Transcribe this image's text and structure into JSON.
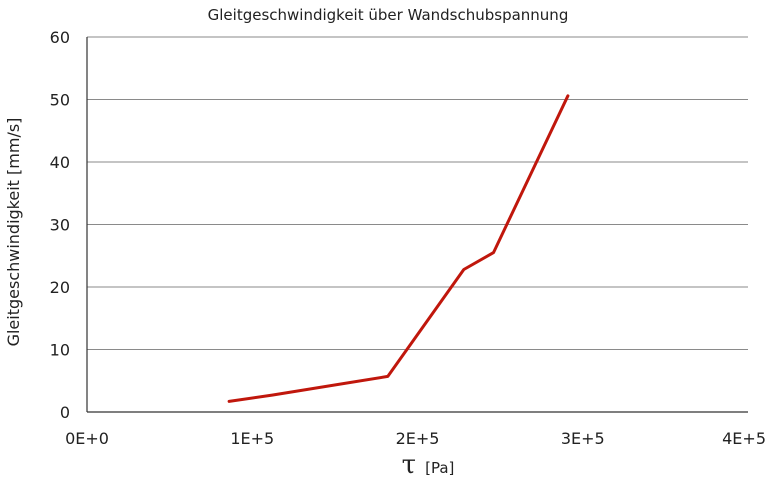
{
  "chart_data": {
    "type": "line",
    "title": "Gleitgeschwindigkeit über Wandschubspannung",
    "xlabel_symbol": "τ",
    "xlabel_unit": "[Pa]",
    "ylabel": "Gleitgeschwindigkeit [mm/s]",
    "xlim": [
      0,
      400000
    ],
    "ylim": [
      0,
      60
    ],
    "x_ticks": [
      0,
      100000,
      200000,
      300000,
      400000
    ],
    "x_tick_labels": [
      "0E+0",
      "1E+5",
      "2E+5",
      "3E+5",
      "4E+5"
    ],
    "y_ticks": [
      0,
      10,
      20,
      30,
      40,
      50,
      60
    ],
    "y_tick_labels": [
      "0",
      "10",
      "20",
      "30",
      "40",
      "50",
      "60"
    ],
    "grid": "horizontal",
    "legend": "none",
    "series": [
      {
        "color": "#c0170c",
        "x": [
          86000,
          112000,
          182000,
          228000,
          246000,
          291000
        ],
        "y": [
          1.7,
          2.7,
          5.7,
          22.8,
          25.5,
          50.6
        ]
      }
    ]
  }
}
